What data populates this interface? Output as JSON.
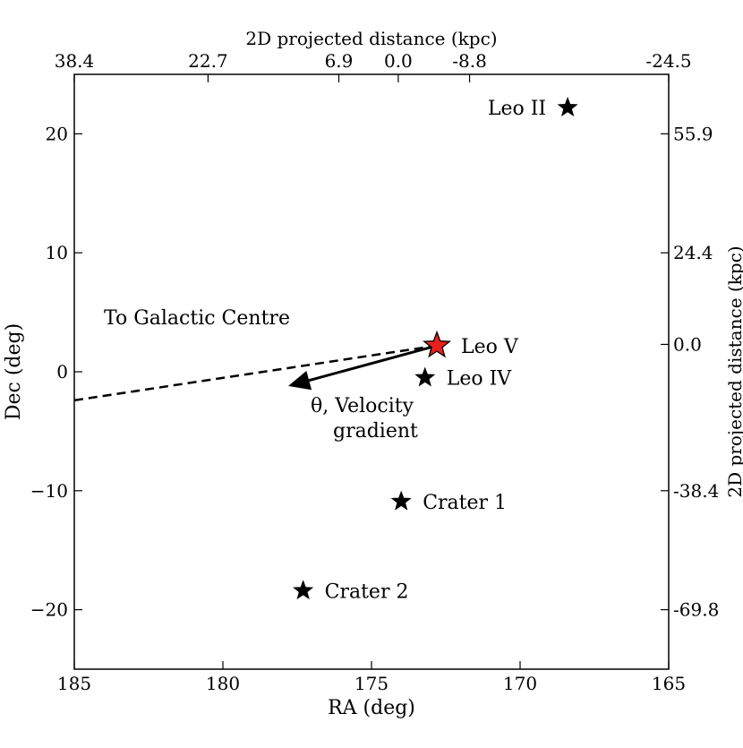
{
  "chart_data": {
    "type": "scatter",
    "xlabel": "RA (deg)",
    "ylabel": "Dec (deg)",
    "xlabel_top": "2D projected distance (kpc)",
    "ylabel_right": "2D projected distance (kpc)",
    "xlim": [
      185,
      165
    ],
    "ylim": [
      -25,
      25
    ],
    "x_ticks": [
      {
        "value": 185,
        "label": "185"
      },
      {
        "value": 180,
        "label": "180"
      },
      {
        "value": 175,
        "label": "175"
      },
      {
        "value": 170,
        "label": "170"
      },
      {
        "value": 165,
        "label": "165"
      }
    ],
    "y_ticks": [
      {
        "value": 20,
        "label": "20"
      },
      {
        "value": 10,
        "label": "10"
      },
      {
        "value": 0,
        "label": "0"
      },
      {
        "value": -10,
        "label": "−10"
      },
      {
        "value": -20,
        "label": "−20"
      }
    ],
    "top_ticks": [
      {
        "ra": 185,
        "label": "38.4"
      },
      {
        "ra": 180.5,
        "label": "22.7"
      },
      {
        "ra": 176.1,
        "label": "6.9"
      },
      {
        "ra": 174.1,
        "label": "0.0"
      },
      {
        "ra": 171.7,
        "label": "-8.8"
      },
      {
        "ra": 165,
        "label": "-24.5"
      }
    ],
    "right_ticks": [
      {
        "dec": 20,
        "label": "55.9"
      },
      {
        "dec": 10,
        "label": "24.4"
      },
      {
        "dec": 2.3,
        "label": "0.0"
      },
      {
        "dec": -10,
        "label": "-38.4"
      },
      {
        "dec": -20,
        "label": "-69.8"
      }
    ],
    "points": [
      {
        "name": "Leo II",
        "ra": 168.4,
        "dec": 22.2,
        "color": "#000000",
        "size": "small",
        "label_side": "left"
      },
      {
        "name": "Leo V",
        "ra": 172.8,
        "dec": 2.2,
        "color": "#e8201f",
        "size": "large",
        "label_side": "right"
      },
      {
        "name": "Leo IV",
        "ra": 173.2,
        "dec": -0.5,
        "color": "#000000",
        "size": "small",
        "label_side": "right"
      },
      {
        "name": "Crater 1",
        "ra": 174.0,
        "dec": -10.9,
        "color": "#000000",
        "size": "small",
        "label_side": "right"
      },
      {
        "name": "Crater 2",
        "ra": 177.3,
        "dec": -18.4,
        "color": "#000000",
        "size": "small",
        "label_side": "right"
      }
    ],
    "dashed_line": {
      "x": [
        185,
        172.8
      ],
      "y": [
        -2.4,
        2.2
      ],
      "label": "To Galactic Centre"
    },
    "arrow": {
      "x0": 172.8,
      "y0": 2.2,
      "x1": 177.8,
      "y1": -1.2,
      "label_line1": "θ, Velocity",
      "label_line2": "gradient"
    },
    "grid": false,
    "legend": "none"
  }
}
